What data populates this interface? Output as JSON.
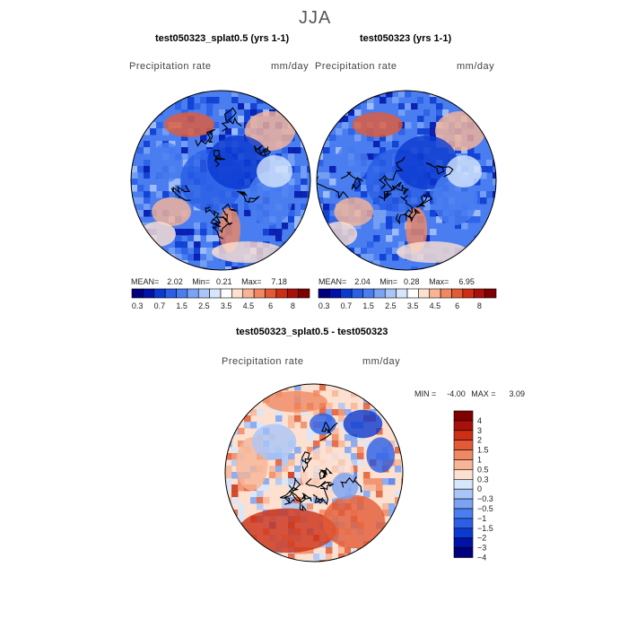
{
  "figure": {
    "season": "JJA"
  },
  "colors": {
    "precip_scale": [
      "#00007f",
      "#0012a8",
      "#0b3ad0",
      "#2a5fe6",
      "#4a7ef0",
      "#7aa3f4",
      "#aac6f8",
      "#d6e6fb",
      "#ffffff",
      "#fde0cf",
      "#f8b596",
      "#f08963",
      "#e25b36",
      "#cc2f15",
      "#a8100a",
      "#7f0000"
    ],
    "diff_scale": [
      "#00007f",
      "#0012a8",
      "#0b3ad0",
      "#2a5fe6",
      "#4a7ef0",
      "#7aa3f4",
      "#aac6f8",
      "#d6e6fb",
      "#fde0cf",
      "#f8b596",
      "#f08963",
      "#e25b36",
      "#cc2f15",
      "#a8100a",
      "#7f0000"
    ]
  },
  "chart_data": [
    {
      "type": "heatmap",
      "projection": "north-polar-stereographic",
      "title": "test050323_splat0.5 (yrs 1-1)",
      "variable": "Precipitation rate",
      "units": "mm/day",
      "stats": {
        "mean_label": "MEAN=",
        "mean": "2.02",
        "min_label": "Min=",
        "min": "0.21",
        "max_label": "Max=",
        "max": "7.18"
      },
      "colorbar_ticks": [
        "0.3",
        "0.7",
        "1.5",
        "2.5",
        "3.5",
        "4.5",
        "6",
        "8"
      ],
      "legend_position": "bottom"
    },
    {
      "type": "heatmap",
      "projection": "north-polar-stereographic",
      "title": "test050323 (yrs 1-1)",
      "variable": "Precipitation rate",
      "units": "mm/day",
      "stats": {
        "mean_label": "MEAN=",
        "mean": "2.04",
        "min_label": "Min=",
        "min": "0.28",
        "max_label": "Max=",
        "max": "6.95"
      },
      "colorbar_ticks": [
        "0.3",
        "0.7",
        "1.5",
        "2.5",
        "3.5",
        "4.5",
        "6",
        "8"
      ],
      "legend_position": "bottom"
    },
    {
      "type": "heatmap",
      "projection": "north-polar-stereographic",
      "title": "test050323_splat0.5 - test050323",
      "variable": "Precipitation rate",
      "units": "mm/day",
      "stats": {
        "min_label": "MIN =",
        "min": "-4.00",
        "max_label": "MAX =",
        "max": "3.09"
      },
      "colorbar_levels": [
        "4",
        "3",
        "2",
        "1.5",
        "1",
        "0.5",
        "0.3",
        "0",
        "−0.3",
        "−0.5",
        "−1",
        "−1.5",
        "−2",
        "−3",
        "−4"
      ],
      "legend_position": "right"
    }
  ]
}
